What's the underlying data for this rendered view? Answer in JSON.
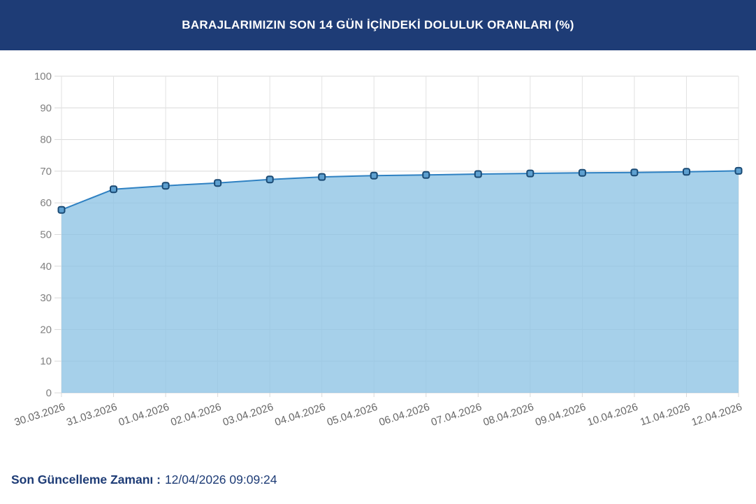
{
  "header": {
    "title": "BARAJLARIMIZIN SON 14 GÜN İÇİNDEKİ DOLULUK ORANLARI (%)",
    "bg_color": "#1e3c76",
    "text_color": "#ffffff"
  },
  "footer": {
    "label": "Son Güncelleme Zamanı :",
    "value": "12/04/2026 09:09:24",
    "color": "#1e3c76"
  },
  "chart_data": {
    "type": "area",
    "title": "",
    "xlabel": "",
    "ylabel": "",
    "categories": [
      "30.03.2026",
      "31.03.2026",
      "01.04.2026",
      "02.04.2026",
      "03.04.2026",
      "04.04.2026",
      "05.04.2026",
      "06.04.2026",
      "07.04.2026",
      "08.04.2026",
      "09.04.2026",
      "10.04.2026",
      "11.04.2026",
      "12.04.2026"
    ],
    "values": [
      57.8,
      64.3,
      65.4,
      66.3,
      67.4,
      68.2,
      68.6,
      68.8,
      69.1,
      69.3,
      69.5,
      69.6,
      69.8,
      70.1
    ],
    "ylim": [
      0,
      100
    ],
    "ytick_step": 10,
    "grid": true,
    "legend": "none",
    "colors": {
      "line": "#2f81c2",
      "area_fill": "#8dc3e4",
      "marker_fill": "#5ea0d0",
      "marker_stroke": "#1a4a74",
      "gridline": "#d9d9d9",
      "axis_label": "#808080"
    }
  }
}
